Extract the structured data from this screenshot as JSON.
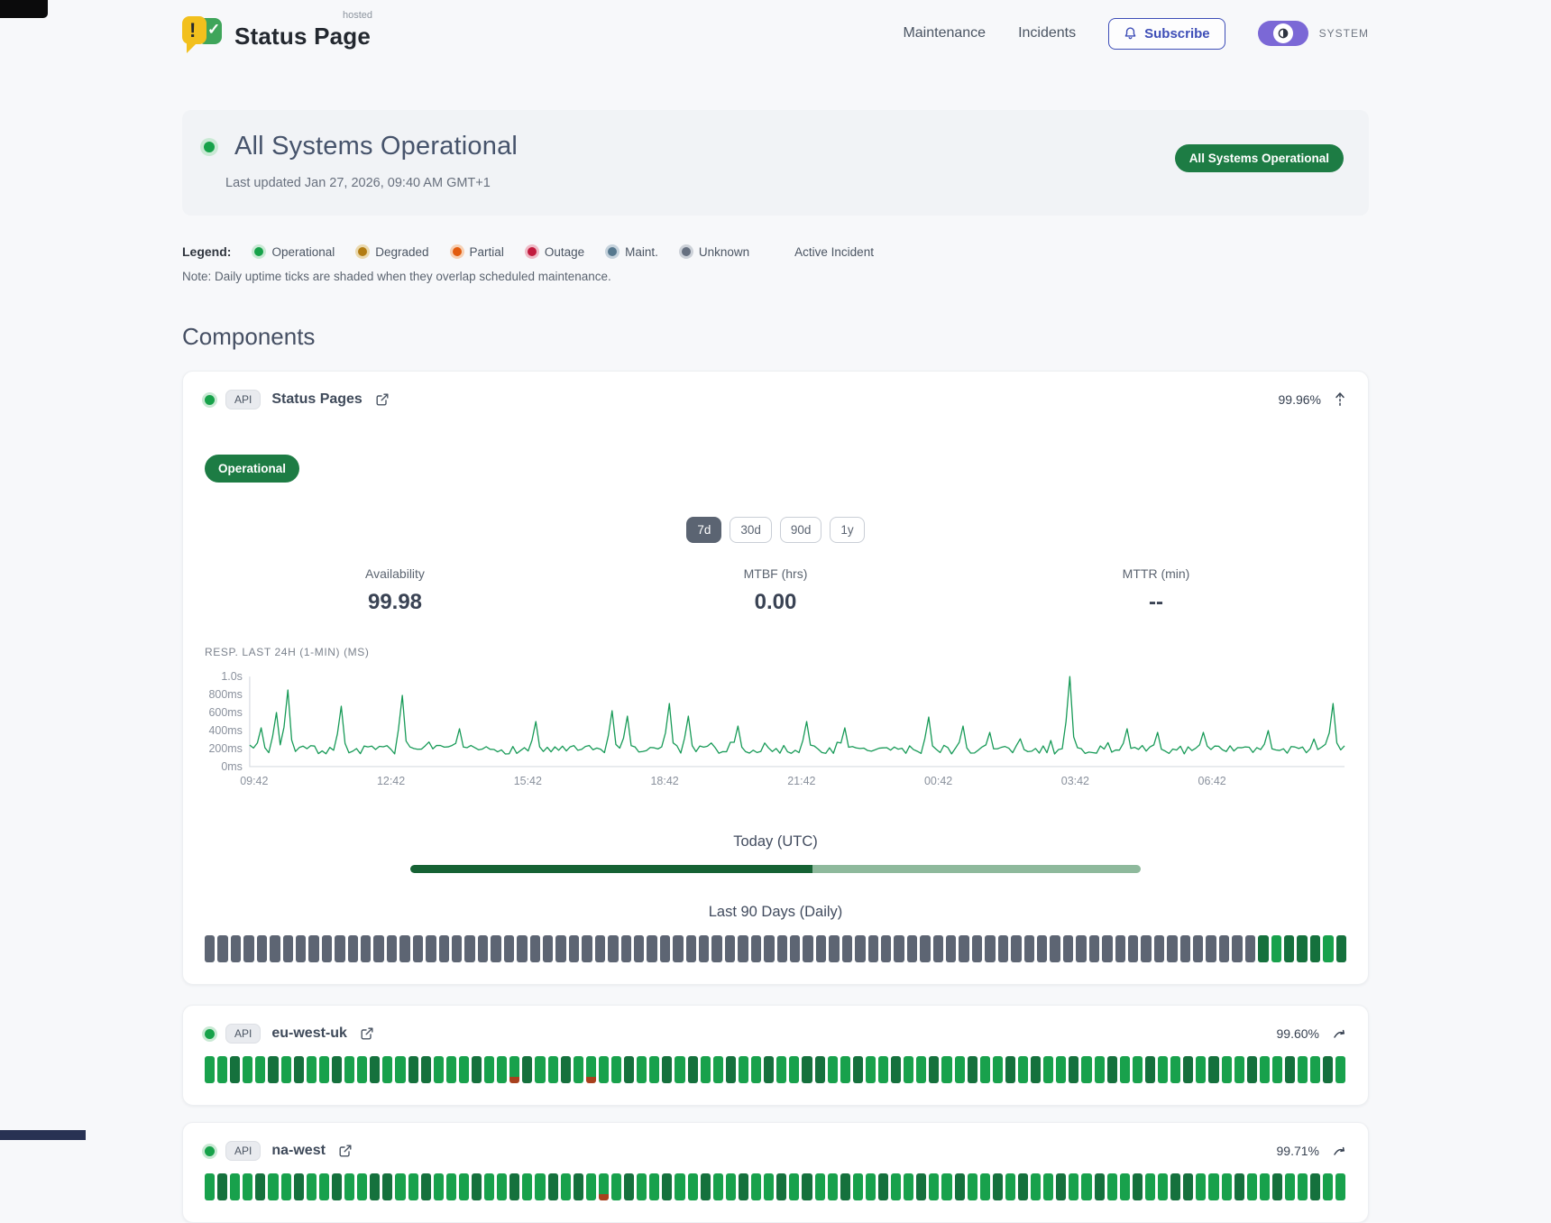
{
  "header": {
    "brand": {
      "title": "Status Page",
      "superscript": "hosted",
      "icon_exclaim": "!",
      "icon_check": "✓"
    },
    "nav": [
      {
        "label": "Maintenance"
      },
      {
        "label": "Incidents"
      }
    ],
    "subscribe": {
      "label": "Subscribe"
    },
    "theme": {
      "label": "SYSTEM"
    }
  },
  "hero": {
    "title": "All Systems Operational",
    "updated": "Last updated Jan 27, 2026, 09:40 AM GMT+1",
    "badge": "All Systems Operational"
  },
  "legend": {
    "label": "Legend:",
    "items": [
      {
        "label": "Operational",
        "color": "#17a24a",
        "ring": "#c9e9d4"
      },
      {
        "label": "Degraded",
        "color": "#b27c12",
        "ring": "#ead9ae"
      },
      {
        "label": "Partial",
        "color": "#e25c0f",
        "ring": "#f6d0b4"
      },
      {
        "label": "Outage",
        "color": "#c11a3d",
        "ring": "#eebac6"
      },
      {
        "label": "Maint.",
        "color": "#56788e",
        "ring": "#c5d2dc"
      },
      {
        "label": "Unknown",
        "color": "#667080",
        "ring": "#ccd1d8"
      }
    ],
    "active_incident_label": "Active Incident",
    "note": "Note: Daily uptime ticks are shaded when they overlap scheduled maintenance."
  },
  "components": {
    "heading": "Components",
    "tick_colors": {
      "X": "#5d6573",
      "G": "#18a14c",
      "D": "#15713d",
      "R_base": "#18a14c",
      "R_bottom": "#a8401d"
    },
    "expanded": {
      "tag": "API",
      "name": "Status Pages",
      "uptime": "99.96%",
      "status_badge": "Operational",
      "ranges": [
        "7d",
        "30d",
        "90d",
        "1y"
      ],
      "active_range": "7d",
      "stats": [
        {
          "label": "Availability",
          "value": "99.98"
        },
        {
          "label": "MTBF (hrs)",
          "value": "0.00"
        },
        {
          "label": "MTTR (min)",
          "value": "--"
        }
      ],
      "chart_label": "RESP. LAST 24H (1-MIN) (MS)",
      "today_label": "Today (UTC)",
      "today_fill_pct": 55,
      "history_label": "Last 90 Days (Daily)",
      "ticks": "XXXXXXXXXXXXXXXXXXXXXXXXXXXXXXXXXXXXXXXXXXXXXXXXXXXXXXXXXXXXXXXXXXXXXXXXXXXXXXXXXDGDDDGD"
    },
    "collapsed": [
      {
        "tag": "API",
        "name": "eu-west-uk",
        "uptime": "99.60%",
        "ticks": "GGDGGDGDGGDGGDGGDDGGGDGGRDGGDGRGGDGGDGDGGDGGDGGDDGGDGGDGGDGGDGGDGDGGDGGDGGDGGDGDGGDGGDGGDG"
      },
      {
        "tag": "API",
        "name": "na-west",
        "uptime": "99.71%",
        "ticks": "GDGGDGGDGGDGGDDGGDGGGDGGDGGDGDGRGDGGDGGDGGDGGDGDGGDGGDGGDGGDGGDGDGGDGGDGGDGGDDGGGDGGDGGDGG"
      }
    ]
  },
  "chart_data": {
    "type": "line",
    "title": "RESP. LAST 24H (1-MIN) (MS)",
    "unit": "ms",
    "ylim": [
      0,
      1000
    ],
    "grid": false,
    "line_color": "#179a57",
    "yticks": [
      {
        "v": 1000,
        "label": "1.0s"
      },
      {
        "v": 800,
        "label": "800ms"
      },
      {
        "v": 600,
        "label": "600ms"
      },
      {
        "v": 400,
        "label": "400ms"
      },
      {
        "v": 200,
        "label": "200ms"
      },
      {
        "v": 0,
        "label": "0ms"
      }
    ],
    "xticks": [
      "09:42",
      "12:42",
      "15:42",
      "18:42",
      "21:42",
      "00:42",
      "03:42",
      "06:42"
    ],
    "points_per_series": 288,
    "noise_seed": 7,
    "baseline": {
      "min": 140,
      "max": 235
    },
    "spikes": [
      {
        "t": 0.01,
        "v": 430
      },
      {
        "t": 0.026,
        "v": 600
      },
      {
        "t": 0.036,
        "v": 850
      },
      {
        "t": 0.082,
        "v": 670
      },
      {
        "t": 0.14,
        "v": 790
      },
      {
        "t": 0.19,
        "v": 420
      },
      {
        "t": 0.26,
        "v": 500
      },
      {
        "t": 0.33,
        "v": 620
      },
      {
        "t": 0.345,
        "v": 560
      },
      {
        "t": 0.385,
        "v": 700
      },
      {
        "t": 0.4,
        "v": 560
      },
      {
        "t": 0.445,
        "v": 450
      },
      {
        "t": 0.51,
        "v": 500
      },
      {
        "t": 0.545,
        "v": 430
      },
      {
        "t": 0.62,
        "v": 550
      },
      {
        "t": 0.65,
        "v": 450
      },
      {
        "t": 0.675,
        "v": 380
      },
      {
        "t": 0.748,
        "v": 1000
      },
      {
        "t": 0.8,
        "v": 420
      },
      {
        "t": 0.83,
        "v": 380
      },
      {
        "t": 0.87,
        "v": 380
      },
      {
        "t": 0.93,
        "v": 400
      },
      {
        "t": 0.99,
        "v": 700
      }
    ]
  }
}
